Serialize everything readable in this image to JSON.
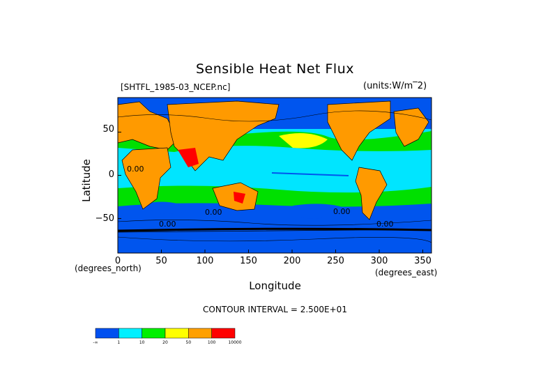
{
  "chart_data": {
    "type": "heatmap",
    "title": "Sensible Heat Net Flux",
    "file": "[SHTFL_1985-03_NCEP.nc]",
    "units": "(units:W/m^2)",
    "units_display": "(units:W/m‾2)",
    "xlabel": "Longitude",
    "ylabel": "Latitude",
    "x_unit": "(degrees_north)",
    "x_unit2": "(degrees_east)",
    "xlim": [
      0,
      360
    ],
    "ylim": [
      -90,
      90
    ],
    "x_ticks": [
      "0",
      "50",
      "100",
      "150",
      "200",
      "250",
      "300",
      "350"
    ],
    "y_ticks": [
      "50",
      "0",
      "−50"
    ],
    "y_tick_values": [
      50,
      0,
      -50
    ],
    "x_tick_values": [
      0,
      50,
      100,
      150,
      200,
      250,
      300,
      350
    ],
    "contour_interval": "CONTOUR INTERVAL = 2.500E+01",
    "contour_labels": [
      "0.00",
      "0.00",
      "0.00",
      "0.00",
      "0.00"
    ],
    "colorbar": {
      "ticks": [
        "-∞",
        "1",
        "10",
        "20",
        "50",
        "100",
        "10000"
      ],
      "colors": [
        "#0050f0",
        "#00f0ff",
        "#00f000",
        "#ffff00",
        "#ffa000",
        "#ff0000"
      ]
    },
    "land_color": "#ff9a00",
    "ocean_low": "#0055ee",
    "ocean_mid": "#00e5ff",
    "ocean_high": "#00e000"
  }
}
